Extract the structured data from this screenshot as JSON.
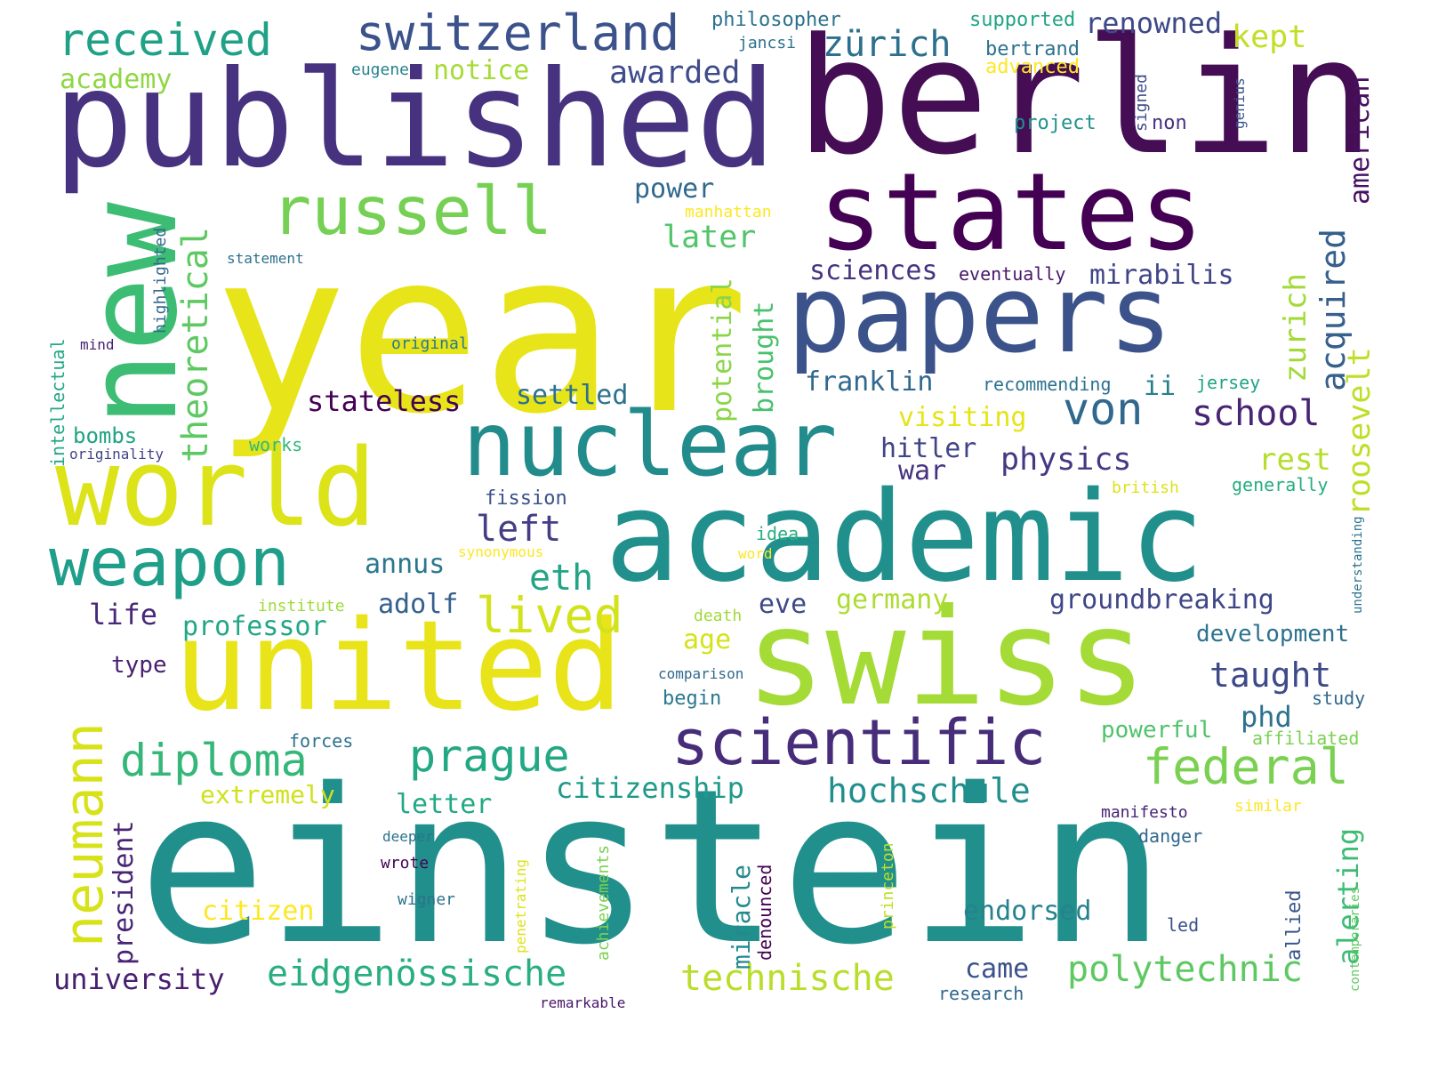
{
  "words": [
    {
      "text": "einstein",
      "color": "#21908c"
    },
    {
      "text": "year",
      "color": "#e7e419"
    },
    {
      "text": "berlin",
      "color": "#440d54"
    },
    {
      "text": "published",
      "color": "#46327e"
    },
    {
      "text": "swiss",
      "color": "#a5db36"
    },
    {
      "text": "united",
      "color": "#e8e419"
    },
    {
      "text": "academic",
      "color": "#21908d"
    },
    {
      "text": "papers",
      "color": "#3b528b"
    },
    {
      "text": "states",
      "color": "#440154"
    },
    {
      "text": "new",
      "color": "#3dbc74"
    },
    {
      "text": "world",
      "color": "#dce319"
    },
    {
      "text": "nuclear",
      "color": "#228c8d"
    },
    {
      "text": "weapon",
      "color": "#1f9e89"
    },
    {
      "text": "russell",
      "color": "#75d054"
    },
    {
      "text": "scientific",
      "color": "#472c7a"
    },
    {
      "text": "neumann",
      "color": "#d8e219"
    },
    {
      "text": "switzerland",
      "color": "#3b528b"
    },
    {
      "text": "received",
      "color": "#1fa187"
    },
    {
      "text": "prague",
      "color": "#22a884"
    },
    {
      "text": "diploma",
      "color": "#35b779"
    },
    {
      "text": "federal",
      "color": "#7ad151"
    },
    {
      "text": "von",
      "color": "#31688e"
    },
    {
      "text": "lived",
      "color": "#d2e21b"
    },
    {
      "text": "technische",
      "color": "#b8de29"
    },
    {
      "text": "polytechnic",
      "color": "#5ec962"
    },
    {
      "text": "eidgenössische",
      "color": "#29af7f"
    },
    {
      "text": "hochschule",
      "color": "#218f8d"
    },
    {
      "text": "theoretical",
      "color": "#5ec962"
    },
    {
      "text": "school",
      "color": "#482475"
    },
    {
      "text": "zürich",
      "color": "#2d708e"
    },
    {
      "text": "physics",
      "color": "#443983"
    },
    {
      "text": "acquired",
      "color": "#355f8d"
    },
    {
      "text": "eth",
      "color": "#21a585"
    },
    {
      "text": "university",
      "color": "#481f70"
    },
    {
      "text": "citizenship",
      "color": "#1f9a8a"
    },
    {
      "text": "taught",
      "color": "#3e4a89"
    },
    {
      "text": "left",
      "color": "#433e85"
    },
    {
      "text": "awarded",
      "color": "#3e4c8a"
    },
    {
      "text": "renowned",
      "color": "#3e4989"
    },
    {
      "text": "kept",
      "color": "#c0df25"
    },
    {
      "text": "later",
      "color": "#52c569"
    },
    {
      "text": "sciences",
      "color": "#463480"
    },
    {
      "text": "mirabilis",
      "color": "#414487"
    },
    {
      "text": "roosevelt",
      "color": "#bddf26"
    },
    {
      "text": "stateless",
      "color": "#440154"
    },
    {
      "text": "settled",
      "color": "#2c728e"
    },
    {
      "text": "franklin",
      "color": "#31688e"
    },
    {
      "text": "zurich",
      "color": "#a2da37"
    },
    {
      "text": "american",
      "color": "#471063"
    },
    {
      "text": "potential",
      "color": "#8bd646"
    },
    {
      "text": "brought",
      "color": "#4ac16d"
    },
    {
      "text": "groundbreaking",
      "color": "#3f4788"
    },
    {
      "text": "visiting",
      "color": "#e5e419"
    },
    {
      "text": "hitler",
      "color": "#414487"
    },
    {
      "text": "war",
      "color": "#46337f"
    },
    {
      "text": "rest",
      "color": "#b5de2b"
    },
    {
      "text": "germany",
      "color": "#addc30"
    },
    {
      "text": "adolf",
      "color": "#355f8d"
    },
    {
      "text": "annus",
      "color": "#2a788e"
    },
    {
      "text": "professor",
      "color": "#22a785"
    },
    {
      "text": "life",
      "color": "#482878"
    },
    {
      "text": "age",
      "color": "#d5e21a"
    },
    {
      "text": "eve",
      "color": "#3e4989"
    },
    {
      "text": "development",
      "color": "#2c728e"
    },
    {
      "text": "phd",
      "color": "#2c728e"
    },
    {
      "text": "powerful",
      "color": "#4ec36b"
    },
    {
      "text": "endorsed",
      "color": "#26828e"
    },
    {
      "text": "president",
      "color": "#482475"
    },
    {
      "text": "miracle",
      "color": "#23898e"
    },
    {
      "text": "citizen",
      "color": "#fde725"
    },
    {
      "text": "came",
      "color": "#3b528b"
    },
    {
      "text": "alerting",
      "color": "#3dbc74"
    },
    {
      "text": "power",
      "color": "#31688e"
    },
    {
      "text": "notice",
      "color": "#a5db36"
    },
    {
      "text": "academy",
      "color": "#8fd744"
    },
    {
      "text": "ii",
      "color": "#277f8e"
    },
    {
      "text": "letter",
      "color": "#22a884"
    },
    {
      "text": "extremely",
      "color": "#d0e11c"
    },
    {
      "text": "type",
      "color": "#482173"
    },
    {
      "text": "bombs",
      "color": "#20a386"
    },
    {
      "text": "highlighted",
      "color": "#31688e"
    },
    {
      "text": "philosopher",
      "color": "#2c728e"
    },
    {
      "text": "supported",
      "color": "#20a486"
    },
    {
      "text": "bertrand",
      "color": "#2c728e"
    },
    {
      "text": "advanced",
      "color": "#fde725"
    },
    {
      "text": "project",
      "color": "#21918c"
    },
    {
      "text": "signed",
      "color": "#3e4c8a"
    },
    {
      "text": "non",
      "color": "#46337f"
    },
    {
      "text": "genius",
      "color": "#39558c"
    },
    {
      "text": "jancsi",
      "color": "#2c728e"
    },
    {
      "text": "eugene",
      "color": "#26828e"
    },
    {
      "text": "manhattan",
      "color": "#fde725"
    },
    {
      "text": "statement",
      "color": "#2c728e"
    },
    {
      "text": "eventually",
      "color": "#481769"
    },
    {
      "text": "intellectual",
      "color": "#22a785"
    },
    {
      "text": "mind",
      "color": "#482173"
    },
    {
      "text": "original",
      "color": "#2a788e"
    },
    {
      "text": "originality",
      "color": "#414487"
    },
    {
      "text": "works",
      "color": "#35b779"
    },
    {
      "text": "recommending",
      "color": "#2c728e"
    },
    {
      "text": "jersey",
      "color": "#20a386"
    },
    {
      "text": "fission",
      "color": "#3b528b"
    },
    {
      "text": "british",
      "color": "#dde318"
    },
    {
      "text": "generally",
      "color": "#27ad81"
    },
    {
      "text": "synonymous",
      "color": "#fde725"
    },
    {
      "text": "idea",
      "color": "#29af7f"
    },
    {
      "text": "word",
      "color": "#fde725"
    },
    {
      "text": "institute",
      "color": "#a0da39"
    },
    {
      "text": "death",
      "color": "#a0da39"
    },
    {
      "text": "understanding",
      "color": "#2c728e"
    },
    {
      "text": "comparison",
      "color": "#31688e"
    },
    {
      "text": "begin",
      "color": "#2a788e"
    },
    {
      "text": "study",
      "color": "#31688e"
    },
    {
      "text": "affiliated",
      "color": "#7ad151"
    },
    {
      "text": "forces",
      "color": "#2c728e"
    },
    {
      "text": "manifesto",
      "color": "#482475"
    },
    {
      "text": "similar",
      "color": "#fde725"
    },
    {
      "text": "deeper",
      "color": "#2c728e"
    },
    {
      "text": "danger",
      "color": "#31688e"
    },
    {
      "text": "wrote",
      "color": "#440154"
    },
    {
      "text": "wigner",
      "color": "#2c728e"
    },
    {
      "text": "achievements",
      "color": "#7ad151"
    },
    {
      "text": "penetrating",
      "color": "#dde318"
    },
    {
      "text": "princeton",
      "color": "#bddf26"
    },
    {
      "text": "denounced",
      "color": "#440154"
    },
    {
      "text": "led",
      "color": "#3b528b"
    },
    {
      "text": "allied",
      "color": "#39558c"
    },
    {
      "text": "contemporaries",
      "color": "#5ec962"
    },
    {
      "text": "research",
      "color": "#31688e"
    },
    {
      "text": "remarkable",
      "color": "#481769"
    }
  ]
}
